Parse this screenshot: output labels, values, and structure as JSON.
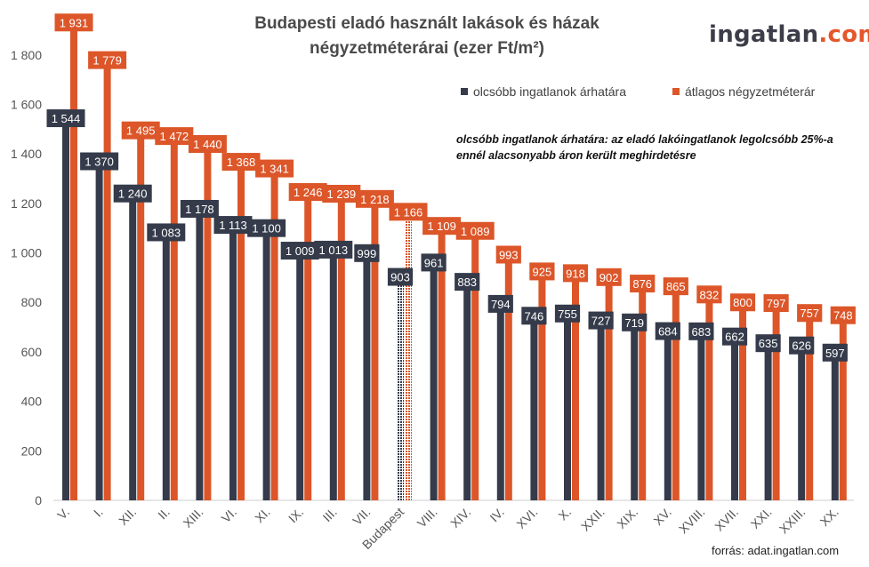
{
  "title_line1": "Budapesti eladó használt lakások és házak",
  "title_line2": "négyzetméterárai (ezer Ft/m²)",
  "logo": {
    "part1": "ingatlan",
    "part2": ".com",
    "color1": "#3d3d4a",
    "color2": "#e5562a"
  },
  "legend": {
    "cheap_label": "olcsóbb ingatlanok árhatára",
    "avg_label": "átlagos négyzetméterár"
  },
  "note_line1": "olcsóbb ingatlanok árhatára: az eladó lakóingatlanok legolcsóbb 25%-a",
  "note_line2": "ennél alacsonyabb áron került meghirdetésre",
  "source": "forrás: adat.ingatlan.com",
  "colors": {
    "cheap": "#353b4a",
    "avg": "#dc5629",
    "label_text": "#ffffff",
    "axis_text": "#555555"
  },
  "chart_data": {
    "type": "bar",
    "title": "Budapesti eladó használt lakások és házak négyzetméterárai (ezer Ft/m²)",
    "categories": [
      "V.",
      "I.",
      "XII.",
      "II.",
      "XIII.",
      "VI.",
      "XI.",
      "IX.",
      "III.",
      "VII.",
      "Budapest",
      "VIII.",
      "XIV.",
      "IV.",
      "XVI.",
      "X.",
      "XXII.",
      "XIX.",
      "XV.",
      "XVIII.",
      "XVII.",
      "XXI.",
      "XXIII.",
      "XX."
    ],
    "series": [
      {
        "name": "olcsóbb ingatlanok árhatára",
        "values": [
          1544,
          1370,
          1240,
          1083,
          1178,
          1113,
          1100,
          1009,
          1013,
          999,
          903,
          961,
          883,
          794,
          746,
          755,
          727,
          719,
          684,
          683,
          662,
          635,
          626,
          597
        ],
        "labels": [
          "1 544",
          "1 370",
          "1 240",
          "1 083",
          "1 178",
          "1 113",
          "1 100",
          "1 009",
          "1 013",
          "999",
          "903",
          "961",
          "883",
          "794",
          "746",
          "755",
          "727",
          "719",
          "684",
          "683",
          "662",
          "635",
          "626",
          "597"
        ]
      },
      {
        "name": "átlagos négyzetméterár",
        "values": [
          1931,
          1779,
          1495,
          1472,
          1440,
          1368,
          1341,
          1246,
          1239,
          1218,
          1166,
          1109,
          1089,
          993,
          925,
          918,
          902,
          876,
          865,
          832,
          800,
          797,
          757,
          748
        ],
        "labels": [
          "1 931",
          "1 779",
          "1 495",
          "1 472",
          "1 440",
          "1 368",
          "1 341",
          "1 246",
          "1 239",
          "1 218",
          "1 166",
          "1 109",
          "1 089",
          "993",
          "925",
          "918",
          "902",
          "876",
          "865",
          "832",
          "800",
          "797",
          "757",
          "748"
        ]
      }
    ],
    "yticks": [
      "0",
      "200",
      "400",
      "600",
      "800",
      "1 000",
      "1 200",
      "1 400",
      "1 600",
      "1 800"
    ],
    "ylim": [
      0,
      1950
    ],
    "highlight_category": "Budapest",
    "grid": false
  }
}
